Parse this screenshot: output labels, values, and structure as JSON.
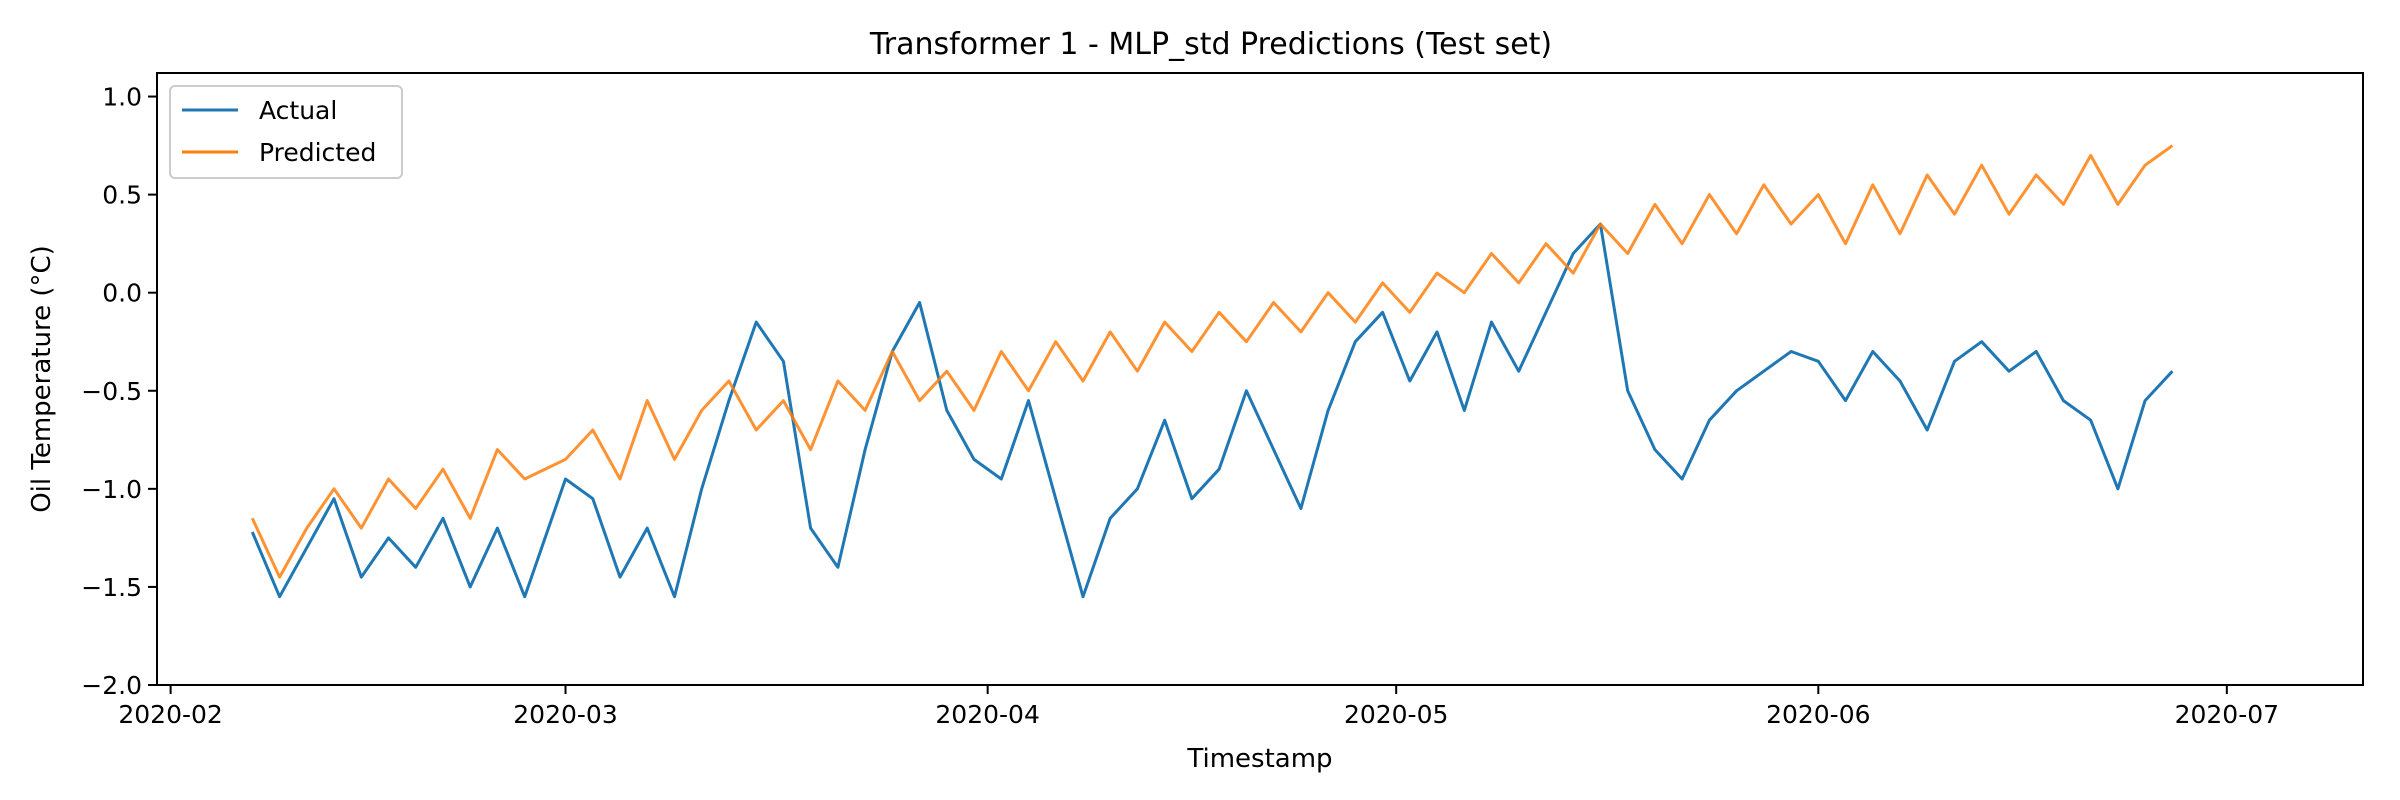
{
  "chart_data": {
    "type": "line",
    "title": "Transformer 1 - MLP_std Predictions (Test set)",
    "xlabel": "Timestamp",
    "ylabel": "Oil Temperature (°C)",
    "xlim": [
      "2020-01-31",
      "2020-07-11"
    ],
    "ylim": [
      -2.0,
      1.12
    ],
    "x_ticks": [
      "2020-02",
      "2020-03",
      "2020-04",
      "2020-05",
      "2020-06",
      "2020-07"
    ],
    "x_tick_dates": [
      "2020-02-01",
      "2020-03-01",
      "2020-04-01",
      "2020-05-01",
      "2020-06-01",
      "2020-07-01"
    ],
    "y_ticks": [
      -2.0,
      -1.5,
      -1.0,
      -0.5,
      0.0,
      0.5,
      1.0
    ],
    "y_tick_labels": [
      "−2.0",
      "−1.5",
      "−1.0",
      "−0.5",
      "0.0",
      "0.5",
      "1.0"
    ],
    "grid": false,
    "legend_position": "top-left",
    "series": [
      {
        "name": "Actual",
        "color": "#1f77b4",
        "points": [
          [
            "2020-02-07",
            -1.22
          ],
          [
            "2020-02-09",
            -1.55
          ],
          [
            "2020-02-11",
            -1.3
          ],
          [
            "2020-02-13",
            -1.05
          ],
          [
            "2020-02-15",
            -1.45
          ],
          [
            "2020-02-17",
            -1.25
          ],
          [
            "2020-02-19",
            -1.4
          ],
          [
            "2020-02-21",
            -1.15
          ],
          [
            "2020-02-23",
            -1.5
          ],
          [
            "2020-02-25",
            -1.2
          ],
          [
            "2020-02-27",
            -1.55
          ],
          [
            "2020-03-01",
            -0.95
          ],
          [
            "2020-03-03",
            -1.05
          ],
          [
            "2020-03-05",
            -1.45
          ],
          [
            "2020-03-07",
            -1.2
          ],
          [
            "2020-03-09",
            -1.55
          ],
          [
            "2020-03-11",
            -1.0
          ],
          [
            "2020-03-13",
            -0.55
          ],
          [
            "2020-03-15",
            -0.15
          ],
          [
            "2020-03-17",
            -0.35
          ],
          [
            "2020-03-19",
            -1.2
          ],
          [
            "2020-03-21",
            -1.4
          ],
          [
            "2020-03-23",
            -0.8
          ],
          [
            "2020-03-25",
            -0.3
          ],
          [
            "2020-03-27",
            -0.05
          ],
          [
            "2020-03-29",
            -0.6
          ],
          [
            "2020-03-31",
            -0.85
          ],
          [
            "2020-04-02",
            -0.95
          ],
          [
            "2020-04-04",
            -0.55
          ],
          [
            "2020-04-06",
            -1.05
          ],
          [
            "2020-04-08",
            -1.55
          ],
          [
            "2020-04-10",
            -1.15
          ],
          [
            "2020-04-12",
            -1.0
          ],
          [
            "2020-04-14",
            -0.65
          ],
          [
            "2020-04-16",
            -1.05
          ],
          [
            "2020-04-18",
            -0.9
          ],
          [
            "2020-04-20",
            -0.5
          ],
          [
            "2020-04-22",
            -0.8
          ],
          [
            "2020-04-24",
            -1.1
          ],
          [
            "2020-04-26",
            -0.6
          ],
          [
            "2020-04-28",
            -0.25
          ],
          [
            "2020-04-30",
            -0.1
          ],
          [
            "2020-05-02",
            -0.45
          ],
          [
            "2020-05-04",
            -0.2
          ],
          [
            "2020-05-06",
            -0.6
          ],
          [
            "2020-05-08",
            -0.15
          ],
          [
            "2020-05-10",
            -0.4
          ],
          [
            "2020-05-12",
            -0.1
          ],
          [
            "2020-05-14",
            0.2
          ],
          [
            "2020-05-16",
            0.35
          ],
          [
            "2020-05-18",
            -0.5
          ],
          [
            "2020-05-20",
            -0.8
          ],
          [
            "2020-05-22",
            -0.95
          ],
          [
            "2020-05-24",
            -0.65
          ],
          [
            "2020-05-26",
            -0.5
          ],
          [
            "2020-05-28",
            -0.4
          ],
          [
            "2020-05-30",
            -0.3
          ],
          [
            "2020-06-01",
            -0.35
          ],
          [
            "2020-06-03",
            -0.55
          ],
          [
            "2020-06-05",
            -0.3
          ],
          [
            "2020-06-07",
            -0.45
          ],
          [
            "2020-06-09",
            -0.7
          ],
          [
            "2020-06-11",
            -0.35
          ],
          [
            "2020-06-13",
            -0.25
          ],
          [
            "2020-06-15",
            -0.4
          ],
          [
            "2020-06-17",
            -0.3
          ],
          [
            "2020-06-19",
            -0.55
          ],
          [
            "2020-06-21",
            -0.65
          ],
          [
            "2020-06-23",
            -1.0
          ],
          [
            "2020-06-25",
            -0.55
          ],
          [
            "2020-06-27",
            -0.4
          ]
        ]
      },
      {
        "name": "Predicted",
        "color": "#ff7f0e",
        "points": [
          [
            "2020-02-07",
            -1.15
          ],
          [
            "2020-02-09",
            -1.45
          ],
          [
            "2020-02-11",
            -1.2
          ],
          [
            "2020-02-13",
            -1.0
          ],
          [
            "2020-02-15",
            -1.2
          ],
          [
            "2020-02-17",
            -0.95
          ],
          [
            "2020-02-19",
            -1.1
          ],
          [
            "2020-02-21",
            -0.9
          ],
          [
            "2020-02-23",
            -1.15
          ],
          [
            "2020-02-25",
            -0.8
          ],
          [
            "2020-02-27",
            -0.95
          ],
          [
            "2020-03-01",
            -0.85
          ],
          [
            "2020-03-03",
            -0.7
          ],
          [
            "2020-03-05",
            -0.95
          ],
          [
            "2020-03-07",
            -0.55
          ],
          [
            "2020-03-09",
            -0.85
          ],
          [
            "2020-03-11",
            -0.6
          ],
          [
            "2020-03-13",
            -0.45
          ],
          [
            "2020-03-15",
            -0.7
          ],
          [
            "2020-03-17",
            -0.55
          ],
          [
            "2020-03-19",
            -0.8
          ],
          [
            "2020-03-21",
            -0.45
          ],
          [
            "2020-03-23",
            -0.6
          ],
          [
            "2020-03-25",
            -0.3
          ],
          [
            "2020-03-27",
            -0.55
          ],
          [
            "2020-03-29",
            -0.4
          ],
          [
            "2020-03-31",
            -0.6
          ],
          [
            "2020-04-02",
            -0.3
          ],
          [
            "2020-04-04",
            -0.5
          ],
          [
            "2020-04-06",
            -0.25
          ],
          [
            "2020-04-08",
            -0.45
          ],
          [
            "2020-04-10",
            -0.2
          ],
          [
            "2020-04-12",
            -0.4
          ],
          [
            "2020-04-14",
            -0.15
          ],
          [
            "2020-04-16",
            -0.3
          ],
          [
            "2020-04-18",
            -0.1
          ],
          [
            "2020-04-20",
            -0.25
          ],
          [
            "2020-04-22",
            -0.05
          ],
          [
            "2020-04-24",
            -0.2
          ],
          [
            "2020-04-26",
            0.0
          ],
          [
            "2020-04-28",
            -0.15
          ],
          [
            "2020-04-30",
            0.05
          ],
          [
            "2020-05-02",
            -0.1
          ],
          [
            "2020-05-04",
            0.1
          ],
          [
            "2020-05-06",
            0.0
          ],
          [
            "2020-05-08",
            0.2
          ],
          [
            "2020-05-10",
            0.05
          ],
          [
            "2020-05-12",
            0.25
          ],
          [
            "2020-05-14",
            0.1
          ],
          [
            "2020-05-16",
            0.35
          ],
          [
            "2020-05-18",
            0.2
          ],
          [
            "2020-05-20",
            0.45
          ],
          [
            "2020-05-22",
            0.25
          ],
          [
            "2020-05-24",
            0.5
          ],
          [
            "2020-05-26",
            0.3
          ],
          [
            "2020-05-28",
            0.55
          ],
          [
            "2020-05-30",
            0.35
          ],
          [
            "2020-06-01",
            0.5
          ],
          [
            "2020-06-03",
            0.25
          ],
          [
            "2020-06-05",
            0.55
          ],
          [
            "2020-06-07",
            0.3
          ],
          [
            "2020-06-09",
            0.6
          ],
          [
            "2020-06-11",
            0.4
          ],
          [
            "2020-06-13",
            0.65
          ],
          [
            "2020-06-15",
            0.4
          ],
          [
            "2020-06-17",
            0.6
          ],
          [
            "2020-06-19",
            0.45
          ],
          [
            "2020-06-21",
            0.7
          ],
          [
            "2020-06-23",
            0.45
          ],
          [
            "2020-06-25",
            0.65
          ],
          [
            "2020-06-27",
            0.75
          ]
        ]
      }
    ]
  }
}
